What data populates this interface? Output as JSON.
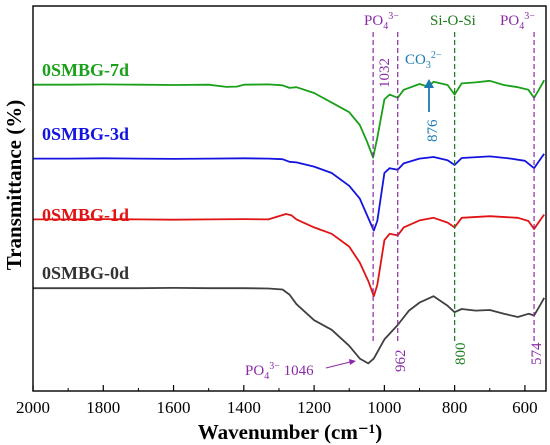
{
  "chart_data": {
    "type": "line",
    "xlabel": "Wavenumber (cm⁻¹)",
    "ylabel": "Transmittance (%)",
    "xlim": [
      2000,
      540
    ],
    "x_reversed": true,
    "xticks": [
      2000,
      1800,
      1600,
      1400,
      1200,
      1000,
      800,
      600
    ],
    "grid": false,
    "series": [
      {
        "name": "0SMBG-7d",
        "color": "#1aa01a",
        "points": [
          [
            2000,
            0.876
          ],
          [
            1900,
            0.876
          ],
          [
            1800,
            0.877
          ],
          [
            1700,
            0.876
          ],
          [
            1600,
            0.875
          ],
          [
            1500,
            0.876
          ],
          [
            1450,
            0.869
          ],
          [
            1420,
            0.87
          ],
          [
            1400,
            0.876
          ],
          [
            1330,
            0.877
          ],
          [
            1290,
            0.874
          ],
          [
            1270,
            0.866
          ],
          [
            1250,
            0.868
          ],
          [
            1200,
            0.85
          ],
          [
            1150,
            0.82
          ],
          [
            1100,
            0.79
          ],
          [
            1070,
            0.75
          ],
          [
            1050,
            0.7
          ],
          [
            1032,
            0.648
          ],
          [
            1020,
            0.71
          ],
          [
            1000,
            0.83
          ],
          [
            985,
            0.845
          ],
          [
            962,
            0.835
          ],
          [
            945,
            0.86
          ],
          [
            900,
            0.878
          ],
          [
            876,
            0.87
          ],
          [
            860,
            0.885
          ],
          [
            820,
            0.875
          ],
          [
            800,
            0.845
          ],
          [
            780,
            0.88
          ],
          [
            740,
            0.883
          ],
          [
            700,
            0.888
          ],
          [
            660,
            0.875
          ],
          [
            620,
            0.868
          ],
          [
            590,
            0.86
          ],
          [
            574,
            0.835
          ],
          [
            555,
            0.87
          ],
          [
            545,
            0.89
          ]
        ]
      },
      {
        "name": "0SMBG-3d",
        "color": "#1414e0",
        "points": [
          [
            2000,
            0.645
          ],
          [
            1900,
            0.645
          ],
          [
            1800,
            0.646
          ],
          [
            1700,
            0.645
          ],
          [
            1600,
            0.644
          ],
          [
            1500,
            0.645
          ],
          [
            1400,
            0.646
          ],
          [
            1330,
            0.645
          ],
          [
            1290,
            0.643
          ],
          [
            1270,
            0.635
          ],
          [
            1250,
            0.633
          ],
          [
            1200,
            0.62
          ],
          [
            1150,
            0.6
          ],
          [
            1100,
            0.56
          ],
          [
            1070,
            0.52
          ],
          [
            1050,
            0.47
          ],
          [
            1030,
            0.42
          ],
          [
            1020,
            0.45
          ],
          [
            1000,
            0.6
          ],
          [
            985,
            0.615
          ],
          [
            962,
            0.61
          ],
          [
            945,
            0.63
          ],
          [
            900,
            0.645
          ],
          [
            860,
            0.65
          ],
          [
            820,
            0.64
          ],
          [
            800,
            0.625
          ],
          [
            780,
            0.647
          ],
          [
            700,
            0.652
          ],
          [
            640,
            0.645
          ],
          [
            600,
            0.638
          ],
          [
            574,
            0.615
          ],
          [
            555,
            0.645
          ],
          [
            545,
            0.66
          ]
        ]
      },
      {
        "name": "0SMBG-1d",
        "color": "#e01414",
        "points": [
          [
            2000,
            0.455
          ],
          [
            1900,
            0.455
          ],
          [
            1800,
            0.456
          ],
          [
            1700,
            0.455
          ],
          [
            1600,
            0.454
          ],
          [
            1500,
            0.455
          ],
          [
            1400,
            0.456
          ],
          [
            1330,
            0.455
          ],
          [
            1280,
            0.472
          ],
          [
            1265,
            0.468
          ],
          [
            1250,
            0.455
          ],
          [
            1200,
            0.43
          ],
          [
            1150,
            0.41
          ],
          [
            1100,
            0.37
          ],
          [
            1070,
            0.32
          ],
          [
            1045,
            0.26
          ],
          [
            1030,
            0.215
          ],
          [
            1020,
            0.25
          ],
          [
            1000,
            0.39
          ],
          [
            985,
            0.41
          ],
          [
            962,
            0.405
          ],
          [
            945,
            0.43
          ],
          [
            900,
            0.452
          ],
          [
            860,
            0.46
          ],
          [
            820,
            0.445
          ],
          [
            800,
            0.43
          ],
          [
            780,
            0.46
          ],
          [
            700,
            0.465
          ],
          [
            620,
            0.46
          ],
          [
            590,
            0.45
          ],
          [
            574,
            0.425
          ],
          [
            555,
            0.455
          ],
          [
            545,
            0.47
          ]
        ]
      },
      {
        "name": "0SMBG-0d",
        "color": "#404040",
        "points": [
          [
            2000,
            0.24
          ],
          [
            1900,
            0.24
          ],
          [
            1800,
            0.24
          ],
          [
            1700,
            0.24
          ],
          [
            1600,
            0.241
          ],
          [
            1500,
            0.24
          ],
          [
            1400,
            0.24
          ],
          [
            1330,
            0.239
          ],
          [
            1290,
            0.236
          ],
          [
            1270,
            0.22
          ],
          [
            1250,
            0.19
          ],
          [
            1200,
            0.14
          ],
          [
            1150,
            0.11
          ],
          [
            1100,
            0.06
          ],
          [
            1070,
            0.02
          ],
          [
            1046,
            0.005
          ],
          [
            1030,
            0.02
          ],
          [
            1000,
            0.08
          ],
          [
            962,
            0.125
          ],
          [
            930,
            0.17
          ],
          [
            900,
            0.195
          ],
          [
            860,
            0.215
          ],
          [
            820,
            0.185
          ],
          [
            800,
            0.165
          ],
          [
            780,
            0.175
          ],
          [
            740,
            0.17
          ],
          [
            700,
            0.172
          ],
          [
            660,
            0.16
          ],
          [
            620,
            0.15
          ],
          [
            590,
            0.16
          ],
          [
            574,
            0.155
          ],
          [
            555,
            0.19
          ],
          [
            545,
            0.21
          ]
        ]
      }
    ],
    "annotations": {
      "vlines": [
        {
          "x": 1032,
          "color": "#8a2aa8"
        },
        {
          "x": 962,
          "color": "#8a2aa8"
        },
        {
          "x": 800,
          "color": "#1d7a1d"
        },
        {
          "x": 574,
          "color": "#8a2aa8"
        }
      ],
      "labels": [
        {
          "id": "po4_top_left",
          "text": "PO4³⁻",
          "color": "#8a2aa8"
        },
        {
          "id": "sio_si",
          "text": "Si-O-Si",
          "color": "#1d7a1d"
        },
        {
          "id": "po4_top_right",
          "text": "PO4³⁻",
          "color": "#8a2aa8"
        },
        {
          "id": "co3",
          "text": "CO3²⁻",
          "color": "#1a7ab0"
        },
        {
          "id": "wn_1032",
          "text": "1032",
          "color": "#8a2aa8"
        },
        {
          "id": "wn_876",
          "text": "876",
          "color": "#1a7ab0"
        },
        {
          "id": "wn_962",
          "text": "962",
          "color": "#8a2aa8"
        },
        {
          "id": "wn_800",
          "text": "800",
          "color": "#1d7a1d"
        },
        {
          "id": "wn_574",
          "text": "574",
          "color": "#8a2aa8"
        },
        {
          "id": "po4_1046",
          "text": "PO4³⁻ 1046",
          "color": "#8a2aa8"
        }
      ]
    }
  }
}
